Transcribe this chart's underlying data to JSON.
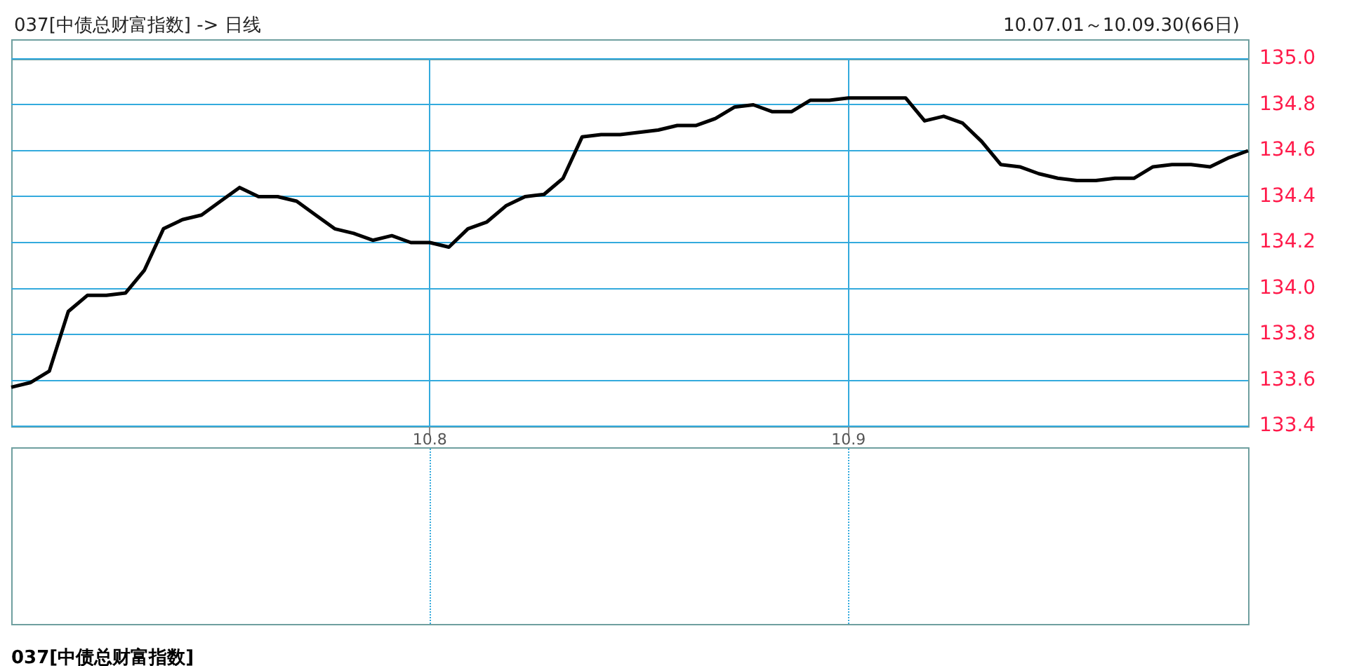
{
  "chart_data": {
    "type": "line",
    "title": "037[中债总财富指数] -> 日线",
    "subtitle": "10.07.01～10.09.30(66日)",
    "annotations": [
      "037[中债总财富指数]"
    ],
    "categories": [
      null,
      null,
      null,
      null,
      null,
      null,
      null,
      null,
      null,
      null,
      null,
      null,
      null,
      null,
      null,
      null,
      null,
      null,
      null,
      null,
      null,
      null,
      "10.8",
      null,
      null,
      null,
      null,
      null,
      null,
      null,
      null,
      null,
      null,
      null,
      null,
      null,
      null,
      null,
      null,
      null,
      null,
      null,
      null,
      null,
      "10.9",
      null,
      null,
      null,
      null,
      null,
      null,
      null,
      null,
      null,
      null,
      null,
      null,
      null,
      null,
      null,
      null,
      null,
      null,
      null,
      null,
      null
    ],
    "series": [
      {
        "color": "#000000",
        "values": [
          133.57,
          133.59,
          133.64,
          133.9,
          133.97,
          133.97,
          133.98,
          134.08,
          134.26,
          134.3,
          134.32,
          134.38,
          134.44,
          134.4,
          134.4,
          134.38,
          134.32,
          134.26,
          134.24,
          134.21,
          134.23,
          134.2,
          134.2,
          134.18,
          134.26,
          134.29,
          134.36,
          134.4,
          134.41,
          134.48,
          134.66,
          134.67,
          134.67,
          134.68,
          134.69,
          134.71,
          134.71,
          134.74,
          134.79,
          134.8,
          134.77,
          134.77,
          134.82,
          134.82,
          134.83,
          134.83,
          134.83,
          134.83,
          134.73,
          134.75,
          134.72,
          134.64,
          134.54,
          134.53,
          134.5,
          134.48,
          134.47,
          134.47,
          134.48,
          134.48,
          134.53,
          134.54,
          134.54,
          134.53,
          134.57,
          134.6
        ]
      }
    ],
    "ylim": [
      133.4,
      135.0
    ],
    "yticks": [
      {
        "value": 133.4,
        "label": "133.4"
      },
      {
        "value": 133.6,
        "label": "133.6"
      },
      {
        "value": 133.8,
        "label": "133.8"
      },
      {
        "value": 134.0,
        "label": "134.0"
      },
      {
        "value": 134.2,
        "label": "134.2"
      },
      {
        "value": 134.4,
        "label": "134.4"
      },
      {
        "value": 134.6,
        "label": "134.6"
      },
      {
        "value": 134.8,
        "label": "134.8"
      },
      {
        "value": 135.0,
        "label": "135.0"
      }
    ],
    "grid": true,
    "legend": false,
    "marker": "none",
    "line_style": "solid"
  }
}
